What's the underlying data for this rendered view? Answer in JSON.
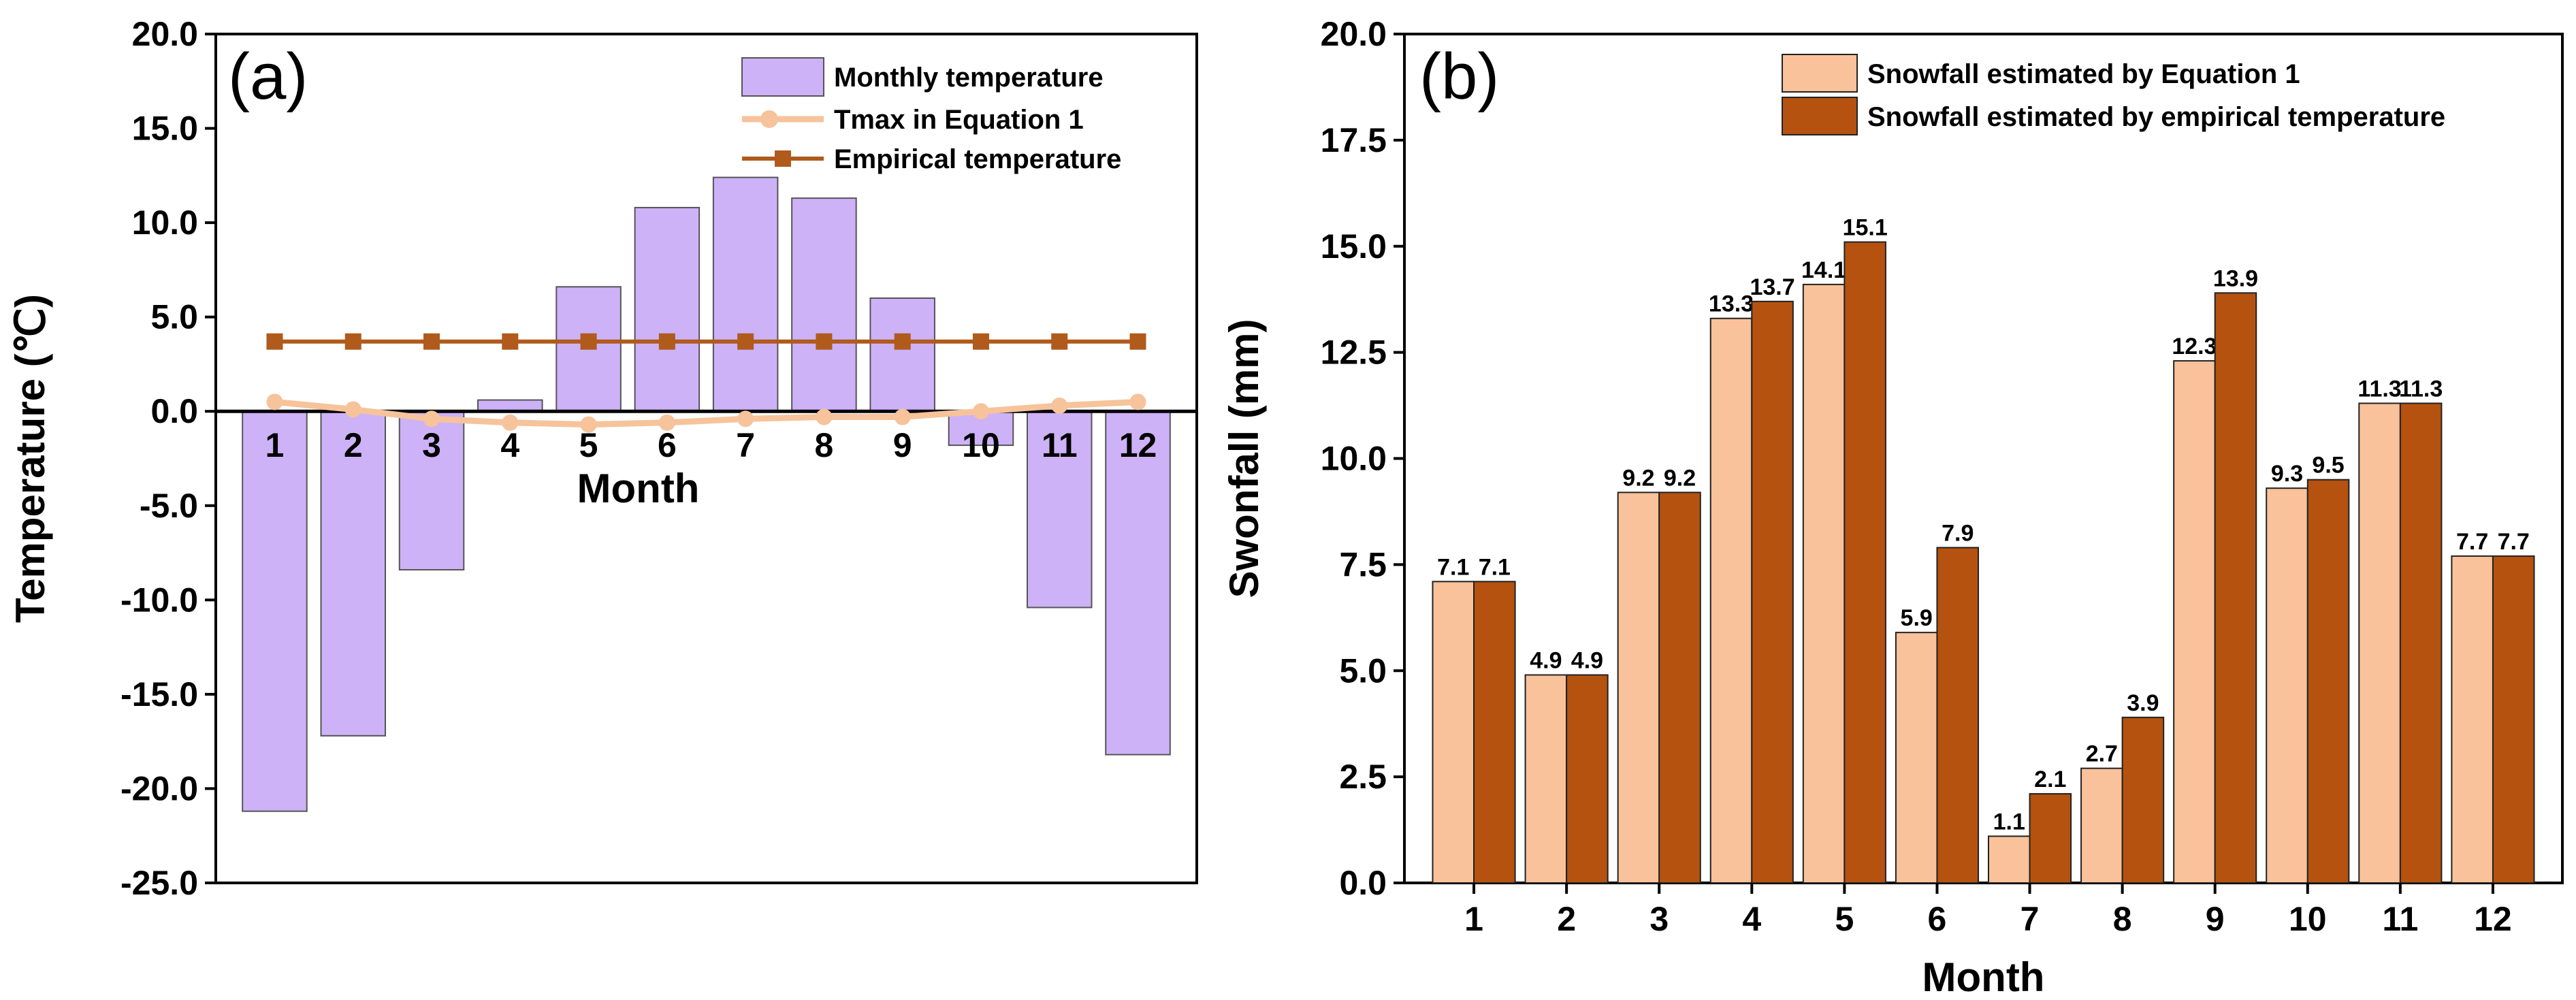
{
  "chart_data": [
    {
      "panel_label": "(a)",
      "type": "bar",
      "title": "",
      "xlabel": "Month",
      "ylabel": "Temperature (℃)",
      "categories": [
        "1",
        "2",
        "3",
        "4",
        "5",
        "6",
        "7",
        "8",
        "9",
        "10",
        "11",
        "12"
      ],
      "ylim": [
        -25,
        20
      ],
      "yticks": [
        "-25.0",
        "-20.0",
        "-15.0",
        "-10.0",
        "-5.0",
        "0.0",
        "5.0",
        "10.0",
        "15.0",
        "20.0"
      ],
      "series": [
        {
          "name": "Monthly temperature",
          "kind": "bar",
          "color": "#cdb2f7",
          "values": [
            -21.2,
            -17.2,
            -8.4,
            0.6,
            6.6,
            10.8,
            12.4,
            11.3,
            6.0,
            -1.8,
            -10.4,
            -18.2
          ]
        },
        {
          "name": "Tmax in Equation 1",
          "kind": "line-marker",
          "color": "#f6c39b",
          "values": [
            0.5,
            0.1,
            -0.4,
            -0.6,
            -0.7,
            -0.6,
            -0.4,
            -0.3,
            -0.3,
            0.0,
            0.3,
            0.5
          ]
        },
        {
          "name": "Empirical temperature",
          "kind": "line-marker",
          "color": "#b05a1c",
          "values": [
            3.7,
            3.7,
            3.7,
            3.7,
            3.7,
            3.7,
            3.7,
            3.7,
            3.7,
            3.7,
            3.7,
            3.7
          ]
        }
      ],
      "legend_position": "top-right"
    },
    {
      "panel_label": "(b)",
      "type": "bar",
      "title": "",
      "xlabel": "Month",
      "ylabel": "Swonfall (mm)",
      "categories": [
        "1",
        "2",
        "3",
        "4",
        "5",
        "6",
        "7",
        "8",
        "9",
        "10",
        "11",
        "12"
      ],
      "ylim": [
        0,
        20
      ],
      "yticks": [
        "0.0",
        "2.5",
        "5.0",
        "7.5",
        "10.0",
        "12.5",
        "15.0",
        "17.5",
        "20.0"
      ],
      "series": [
        {
          "name": "Snowfall estimated by Equation 1",
          "color": "#f9c29a",
          "values": [
            7.1,
            4.9,
            9.2,
            13.3,
            14.1,
            5.9,
            1.1,
            2.7,
            12.3,
            9.3,
            11.3,
            7.7
          ],
          "labels": [
            "7.1",
            "4.9",
            "9.2",
            "13.3",
            "14.1",
            "5.9",
            "1.1",
            "2.7",
            "12.3",
            "9.3",
            "11.3",
            "7.7"
          ]
        },
        {
          "name": "Snowfall estimated by empirical temperature",
          "color": "#b5520f",
          "values": [
            7.1,
            4.9,
            9.2,
            13.7,
            15.1,
            7.9,
            2.1,
            3.9,
            13.9,
            9.5,
            11.3,
            7.7
          ],
          "labels": [
            "7.1",
            "4.9",
            "9.2",
            "13.7",
            "15.1",
            "7.9",
            "2.1",
            "3.9",
            "13.9",
            "9.5",
            "11.3",
            "7.7"
          ]
        }
      ],
      "legend_position": "top-right"
    }
  ]
}
